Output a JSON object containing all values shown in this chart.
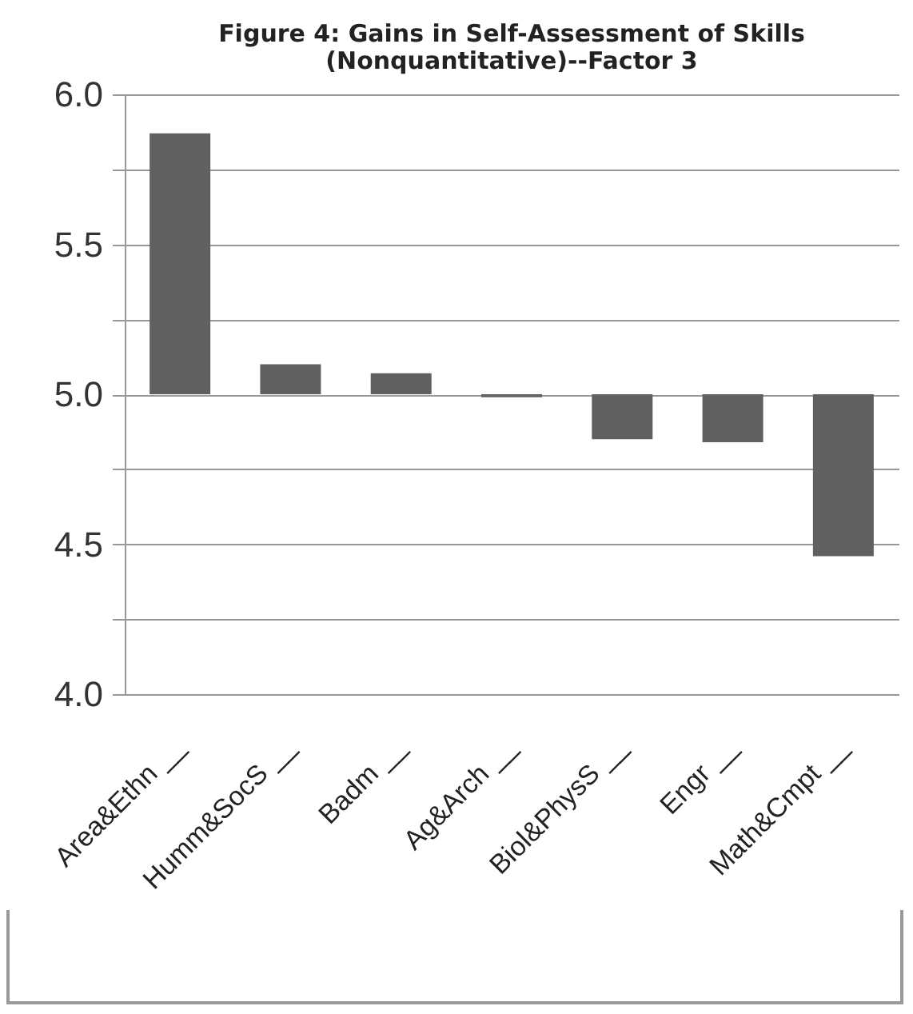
{
  "chart_data": {
    "type": "bar",
    "title": [
      "Figure 4: Gains in Self-Assessment of Skills",
      "(Nonquantitative)--Factor 3"
    ],
    "categories": [
      "Area&Ethn __",
      "Humm&SocS __",
      "Badm __",
      "Ag&Arch __",
      "Biol&PhysS __",
      "Engr __",
      "Math&Cmpt __"
    ],
    "base": [
      5,
      5,
      5,
      5,
      5,
      5,
      5
    ],
    "values": [
      0.87,
      0.1,
      0.07,
      -0.01,
      -0.15,
      -0.16,
      -0.54
    ],
    "color": "#606060",
    "ylim": [
      4,
      6
    ],
    "yticks": [
      {
        "value": 4,
        "label": "4.0"
      },
      {
        "value": 4.25,
        "label": null
      },
      {
        "value": 4.5,
        "label": "4.5"
      },
      {
        "value": 4.75,
        "label": null
      },
      {
        "value": 5,
        "label": "5.0"
      },
      {
        "value": 5.25,
        "label": null
      },
      {
        "value": 5.5,
        "label": "5.5"
      },
      {
        "value": 5.75,
        "label": null
      },
      {
        "value": 6,
        "label": "6.0"
      }
    ],
    "grid": true
  }
}
